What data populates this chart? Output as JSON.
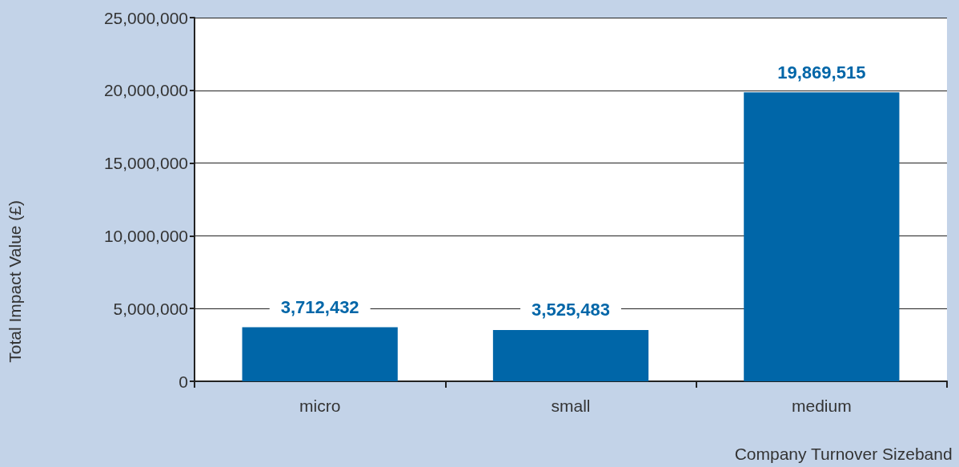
{
  "chart_data": {
    "type": "bar",
    "xlabel": "Company Turnover Sizeband",
    "ylabel": "Total Impact Value (£)",
    "categories": [
      "micro",
      "small",
      "medium"
    ],
    "values": [
      3712432,
      3525483,
      19869515
    ],
    "color": "#0066a8",
    "value_labels": [
      "3,712,432",
      "3,525,483",
      "19,869,515"
    ],
    "ylim": [
      0,
      25000000
    ],
    "yticks": [
      0,
      {
        "value": 5000000,
        "label": "5,000,000"
      },
      {
        "value": 10000000,
        "label": "10,000,000"
      },
      {
        "value": 15000000,
        "label": "15,000,000"
      },
      {
        "value": 20000000,
        "label": "20,000,000"
      },
      {
        "value": 25000000,
        "label": "25,000,000"
      }
    ],
    "grid": "y"
  }
}
